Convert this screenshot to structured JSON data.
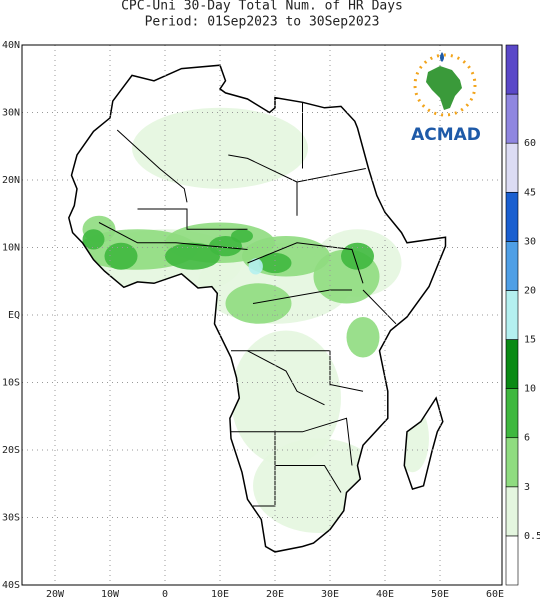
{
  "title": {
    "line1": "CPC-Uni 30-Day Total Num. of HR Days",
    "line2": "Period: 01Sep2023 to 30Sep2023"
  },
  "map": {
    "lat_labels": [
      "40N",
      "30N",
      "20N",
      "10N",
      "EQ",
      "10S",
      "20S",
      "30S",
      "40S"
    ],
    "lon_labels": [
      "20W",
      "10W",
      "0",
      "10E",
      "20E",
      "30E",
      "40E",
      "50E",
      "60E"
    ]
  },
  "legend": {
    "labels": [
      "0.5",
      "3",
      "6",
      "10",
      "15",
      "20",
      "30",
      "45",
      "60"
    ],
    "colors": [
      "#ffffff",
      "#e4f6df",
      "#8fdc80",
      "#3fb83f",
      "#0a8a14",
      "#b4f0f0",
      "#4f9fe6",
      "#1a5fd0",
      "#dcdcf4",
      "#8f86e0",
      "#5a48c8"
    ]
  },
  "logo": {
    "text": "ACMAD"
  }
}
